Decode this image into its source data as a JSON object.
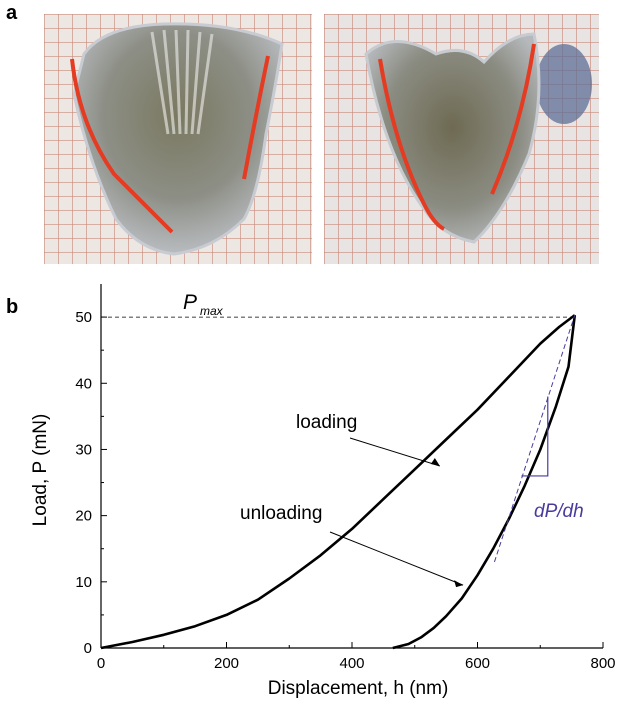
{
  "panels": {
    "a": {
      "letter": "a"
    },
    "b": {
      "letter": "b"
    }
  },
  "colors": {
    "curve": "#000000",
    "trace_red": "#e53b22",
    "slope": "#4b3a9e",
    "grid_line": "#cf9a8e"
  },
  "chart_data": {
    "type": "line",
    "xlabel": "Displacement,  h (nm)",
    "ylabel": "Load,  P (mN)",
    "xlim": [
      0,
      800
    ],
    "ylim": [
      0,
      55
    ],
    "x_ticks": [
      0,
      200,
      400,
      600,
      800
    ],
    "y_ticks": [
      0,
      10,
      20,
      30,
      40,
      50
    ],
    "grid": false,
    "series": [
      {
        "name": "loading",
        "x": [
          0,
          50,
          100,
          150,
          200,
          250,
          300,
          350,
          400,
          450,
          500,
          550,
          600,
          650,
          700,
          730,
          755
        ],
        "y": [
          0,
          0.9,
          2.0,
          3.3,
          5.0,
          7.3,
          10.5,
          14.0,
          18.0,
          22.5,
          27.0,
          31.5,
          36.0,
          41.0,
          46.0,
          48.5,
          50.3
        ]
      },
      {
        "name": "unloading",
        "x": [
          465,
          490,
          510,
          530,
          550,
          575,
          600,
          625,
          650,
          675,
          700,
          725,
          745,
          755
        ],
        "y": [
          0,
          0.6,
          1.6,
          3.0,
          4.8,
          7.5,
          11.0,
          15.0,
          19.5,
          24.5,
          30.0,
          36.5,
          42.5,
          50.3
        ]
      }
    ],
    "annotations": {
      "pmax": {
        "label": "P",
        "subscript": "max",
        "value": 50
      },
      "loading_label": "loading",
      "unloading_label": "unloading",
      "slope_label": "dP/dh"
    }
  }
}
